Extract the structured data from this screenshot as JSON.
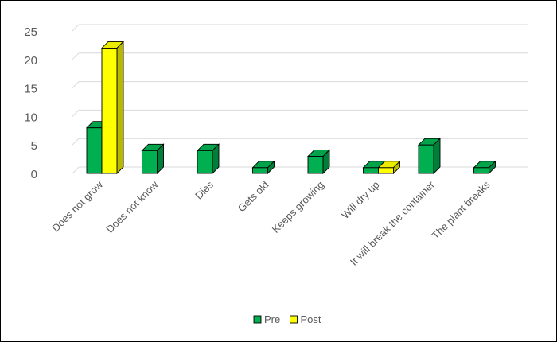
{
  "chart_data": {
    "type": "bar",
    "style": "3d-clustered-column",
    "categories": [
      "Does not grow",
      "Does not know",
      "Dies",
      "Gets old",
      "Keeps growing",
      "Will dry up",
      "It will break the container",
      "The plant breaks"
    ],
    "series": [
      {
        "name": "Pre",
        "values": [
          8,
          4,
          4,
          1,
          3,
          1,
          5,
          1
        ],
        "color": "#00B050"
      },
      {
        "name": "Post",
        "values": [
          22,
          0,
          0,
          0,
          0,
          1,
          0,
          0
        ],
        "color": "#FFFF00"
      }
    ],
    "yticks": [
      "0",
      "5",
      "10",
      "15",
      "20",
      "25"
    ],
    "ylim": [
      0,
      25
    ],
    "grid": true,
    "legend_position": "bottom"
  }
}
